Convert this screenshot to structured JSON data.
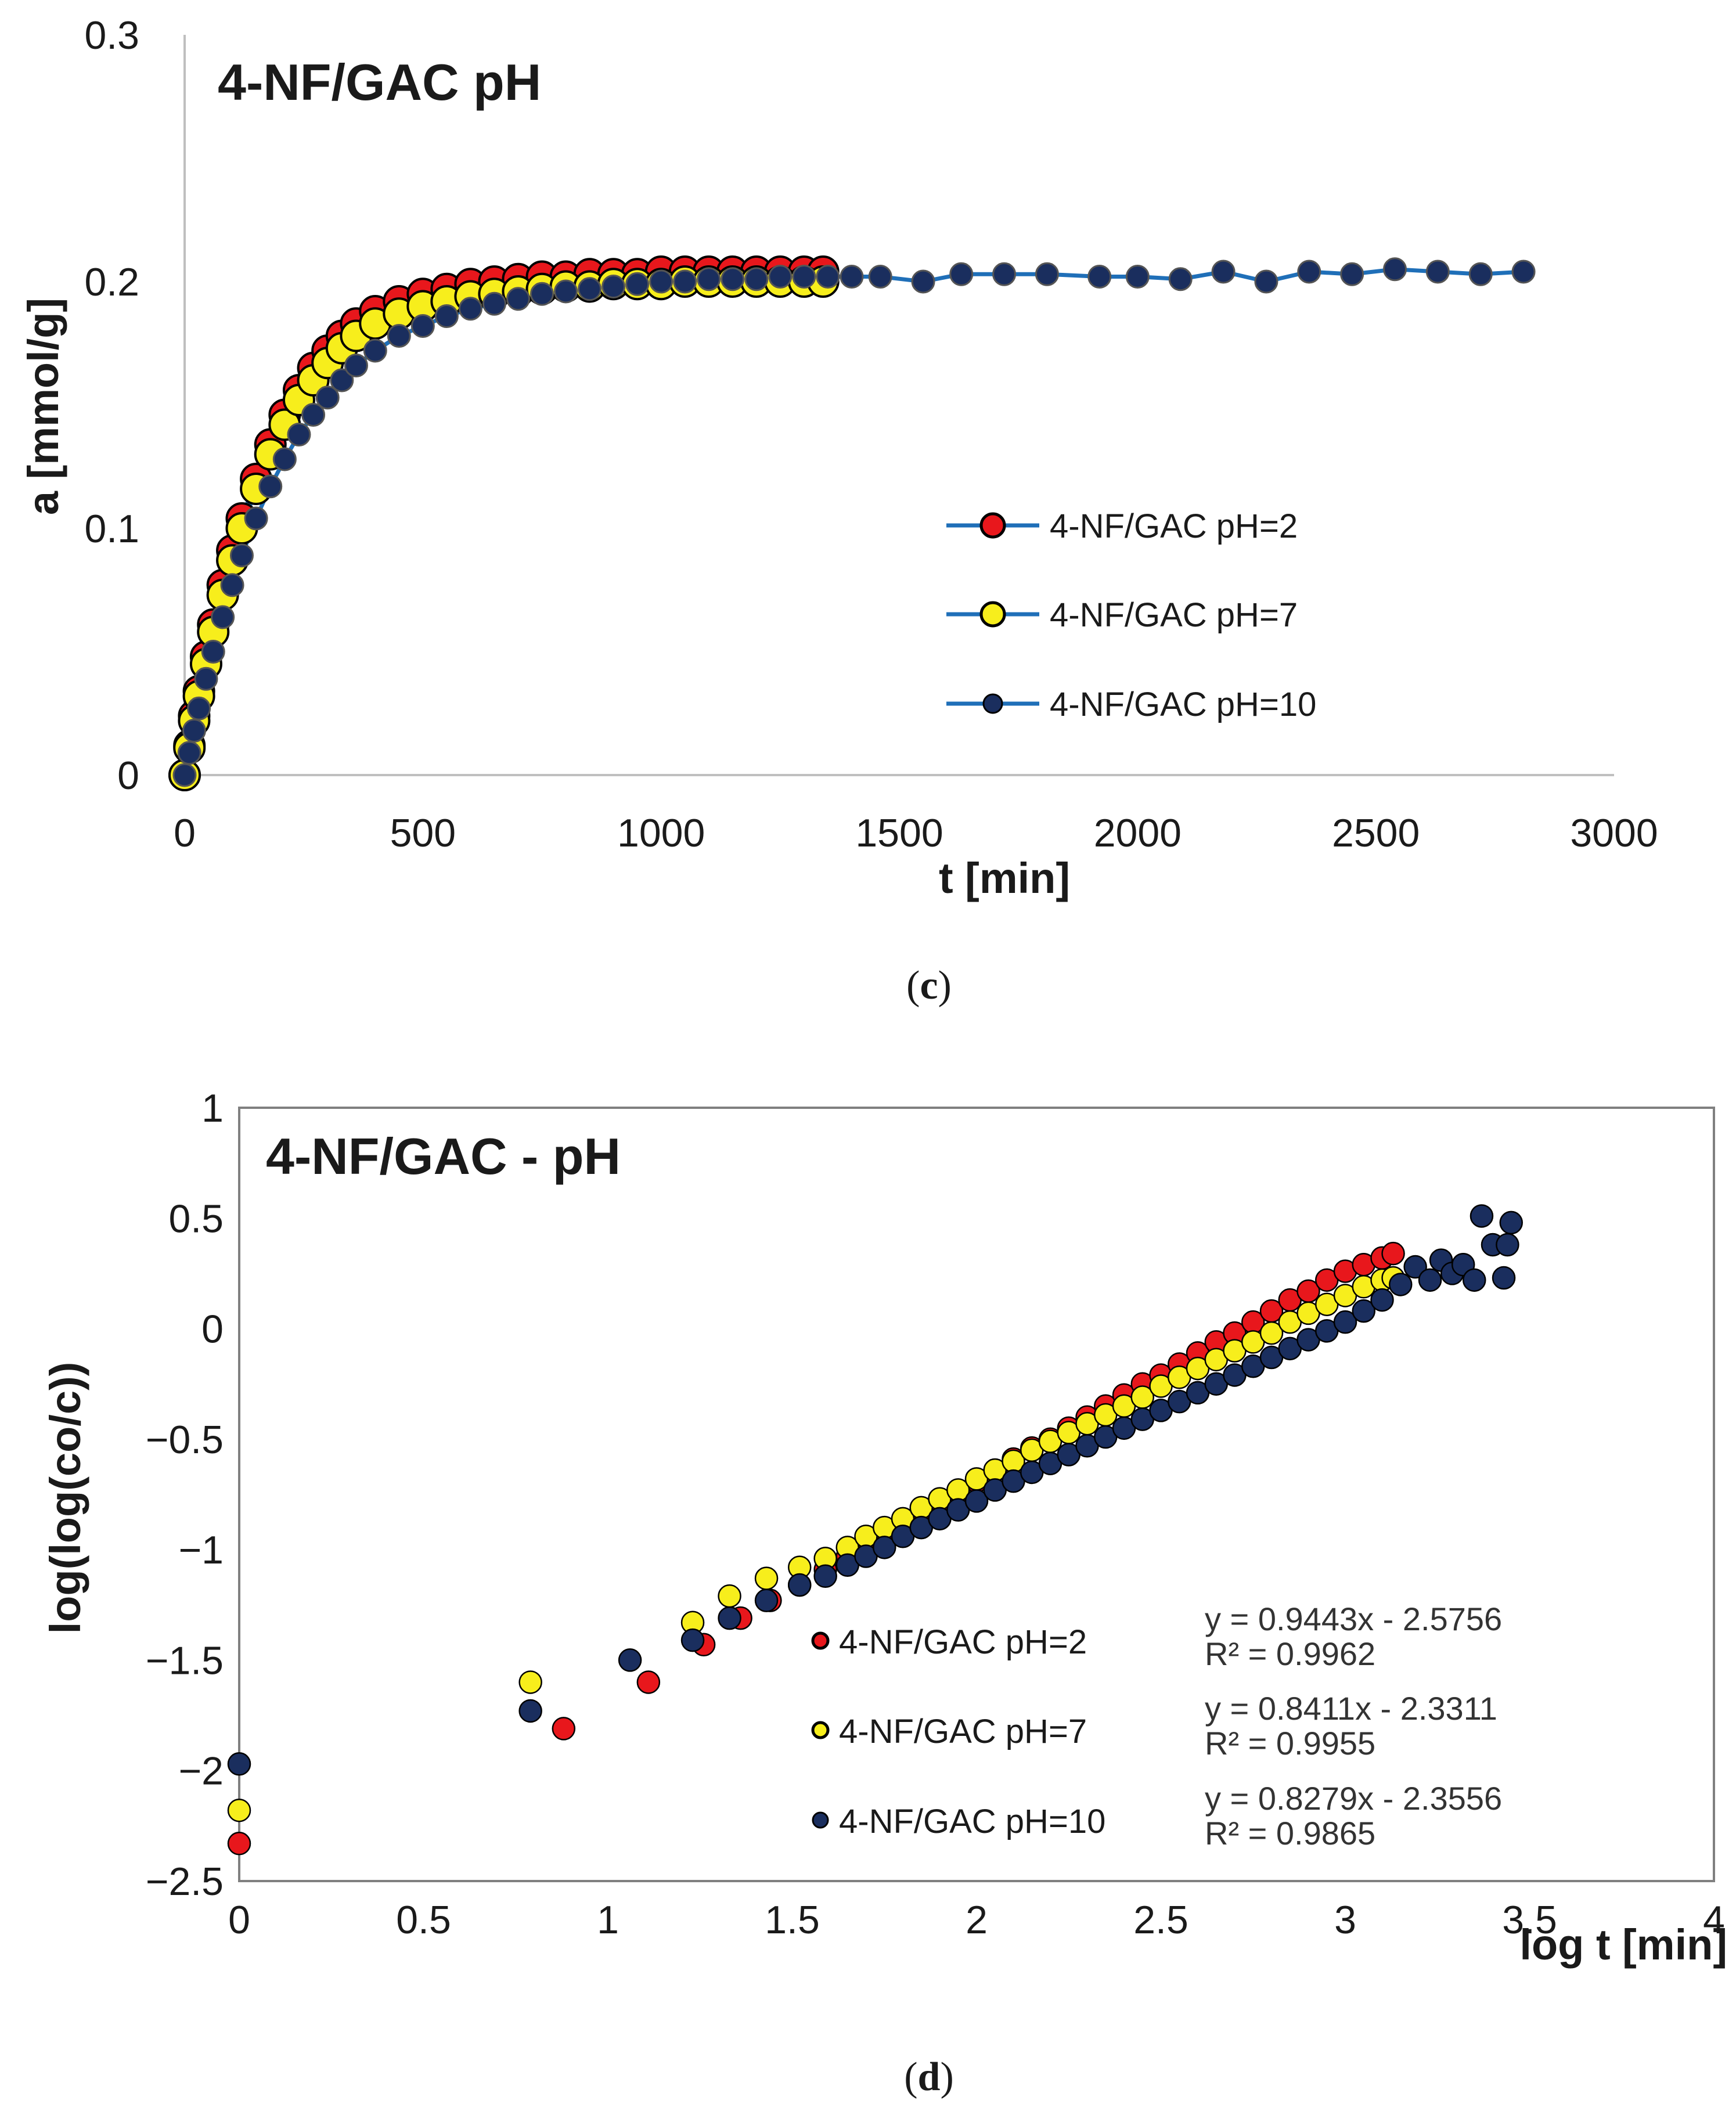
{
  "colors": {
    "ph2": "#e8171c",
    "ph7": "#f7ee1c",
    "ph10": "#1a2e5e",
    "line": "#1f6fb8",
    "axis": "#bfbfbf",
    "border": "#808080"
  },
  "chart_data": [
    {
      "type": "line",
      "title": "4-NF/GAC pH",
      "xlabel": "t [min]",
      "ylabel": "a [mmol/g]",
      "xlim": [
        0,
        3000
      ],
      "ylim": [
        0,
        0.3
      ],
      "xticks": [
        0,
        500,
        1000,
        1500,
        2000,
        2500,
        3000
      ],
      "yticks": [
        0,
        0.1,
        0.2,
        0.3
      ],
      "xtick_labels": [
        "0",
        "500",
        "1000",
        "1500",
        "2000",
        "2500",
        "3000"
      ],
      "ytick_labels": [
        "0",
        "0.1",
        "0.2",
        "0.3"
      ],
      "legend_position": "right",
      "caption": "c",
      "series": [
        {
          "name": "4-NF/GAC pH=2",
          "x": [
            0,
            10,
            20,
            30,
            45,
            60,
            80,
            100,
            120,
            150,
            180,
            210,
            240,
            270,
            300,
            330,
            360,
            400,
            450,
            500,
            550,
            600,
            650,
            700,
            750,
            800,
            850,
            900,
            950,
            1000,
            1050,
            1100,
            1150,
            1200,
            1250,
            1300,
            1340
          ],
          "y": [
            0,
            0.012,
            0.024,
            0.034,
            0.048,
            0.061,
            0.077,
            0.091,
            0.104,
            0.12,
            0.134,
            0.146,
            0.156,
            0.165,
            0.172,
            0.178,
            0.183,
            0.188,
            0.192,
            0.195,
            0.197,
            0.199,
            0.2,
            0.201,
            0.202,
            0.202,
            0.203,
            0.203,
            0.203,
            0.204,
            0.204,
            0.204,
            0.204,
            0.204,
            0.204,
            0.204,
            0.204
          ]
        },
        {
          "name": "4-NF/GAC pH=7",
          "x": [
            0,
            10,
            20,
            30,
            45,
            60,
            80,
            100,
            120,
            150,
            180,
            210,
            240,
            270,
            300,
            330,
            360,
            400,
            450,
            500,
            550,
            600,
            650,
            700,
            750,
            800,
            850,
            900,
            950,
            1000,
            1050,
            1100,
            1150,
            1200,
            1250,
            1300,
            1340
          ],
          "y": [
            0,
            0.011,
            0.022,
            0.032,
            0.045,
            0.058,
            0.073,
            0.087,
            0.1,
            0.116,
            0.13,
            0.142,
            0.152,
            0.16,
            0.167,
            0.173,
            0.178,
            0.183,
            0.187,
            0.19,
            0.192,
            0.194,
            0.195,
            0.196,
            0.197,
            0.198,
            0.198,
            0.199,
            0.199,
            0.199,
            0.2,
            0.2,
            0.2,
            0.2,
            0.2,
            0.2,
            0.2
          ]
        },
        {
          "name": "4-NF/GAC pH=10",
          "x": [
            0,
            10,
            20,
            30,
            45,
            60,
            80,
            100,
            120,
            150,
            180,
            210,
            240,
            270,
            300,
            330,
            360,
            400,
            450,
            500,
            550,
            600,
            650,
            700,
            750,
            800,
            850,
            900,
            950,
            1000,
            1050,
            1100,
            1150,
            1200,
            1250,
            1300,
            1350,
            1400,
            1460,
            1550,
            1630,
            1720,
            1810,
            1920,
            2000,
            2090,
            2180,
            2270,
            2360,
            2450,
            2540,
            2630,
            2720,
            2810
          ],
          "y": [
            0,
            0.009,
            0.018,
            0.027,
            0.039,
            0.05,
            0.064,
            0.077,
            0.089,
            0.104,
            0.117,
            0.128,
            0.138,
            0.146,
            0.153,
            0.16,
            0.166,
            0.172,
            0.178,
            0.182,
            0.186,
            0.189,
            0.191,
            0.193,
            0.195,
            0.196,
            0.197,
            0.198,
            0.199,
            0.2,
            0.2,
            0.201,
            0.201,
            0.201,
            0.202,
            0.202,
            0.202,
            0.202,
            0.202,
            0.2,
            0.203,
            0.203,
            0.203,
            0.202,
            0.202,
            0.201,
            0.204,
            0.2,
            0.204,
            0.203,
            0.205,
            0.204,
            0.203,
            0.204
          ]
        }
      ]
    },
    {
      "type": "scatter",
      "title": "4-NF/GAC - pH",
      "xlabel": "log t [min]",
      "ylabel": "log(log(co/c))",
      "xlim": [
        0,
        4
      ],
      "ylim": [
        -2.5,
        1
      ],
      "xticks": [
        0,
        0.5,
        1,
        1.5,
        2,
        2.5,
        3,
        3.5,
        4
      ],
      "yticks": [
        -2.5,
        -2,
        -1.5,
        -1,
        -0.5,
        0,
        0.5,
        1
      ],
      "xtick_labels": [
        "0",
        "0.5",
        "1",
        "1.5",
        "2",
        "2.5",
        "3",
        "3.5",
        "4"
      ],
      "ytick_labels": [
        "−2.5",
        "−2",
        "−1.5",
        "−1",
        "−0.5",
        "0",
        "0.5",
        "1"
      ],
      "legend_position": "bottom-right",
      "caption": "d",
      "series": [
        {
          "name": "4-NF/GAC pH=2",
          "equation": "y = 0.9443x - 2.5756",
          "r2": "R² = 0.9962",
          "x": [
            0,
            0.88,
            1.11,
            1.26,
            1.36,
            1.44,
            1.52,
            1.59,
            1.65,
            1.7,
            1.75,
            1.8,
            1.85,
            1.9,
            1.95,
            2.0,
            2.05,
            2.1,
            2.15,
            2.2,
            2.25,
            2.3,
            2.35,
            2.4,
            2.45,
            2.5,
            2.55,
            2.6,
            2.65,
            2.7,
            2.75,
            2.8,
            2.85,
            2.9,
            2.95,
            3.0,
            3.05,
            3.1,
            3.13
          ],
          "y": [
            -2.33,
            -1.81,
            -1.6,
            -1.43,
            -1.31,
            -1.23,
            -1.16,
            -1.09,
            -1.03,
            -0.99,
            -0.94,
            -0.89,
            -0.84,
            -0.79,
            -0.74,
            -0.69,
            -0.64,
            -0.59,
            -0.54,
            -0.5,
            -0.45,
            -0.4,
            -0.35,
            -0.3,
            -0.25,
            -0.21,
            -0.16,
            -0.11,
            -0.06,
            -0.02,
            0.03,
            0.08,
            0.13,
            0.17,
            0.22,
            0.26,
            0.29,
            0.32,
            0.34
          ]
        },
        {
          "name": "4-NF/GAC pH=7",
          "equation": "y = 0.8411x - 2.3311",
          "r2": "R² = 0.9955",
          "x": [
            0,
            0.79,
            1.23,
            1.33,
            1.43,
            1.52,
            1.59,
            1.65,
            1.7,
            1.75,
            1.8,
            1.85,
            1.9,
            1.95,
            2.0,
            2.05,
            2.1,
            2.15,
            2.2,
            2.25,
            2.3,
            2.35,
            2.4,
            2.45,
            2.5,
            2.55,
            2.6,
            2.65,
            2.7,
            2.75,
            2.8,
            2.85,
            2.9,
            2.95,
            3.0,
            3.05,
            3.1,
            3.13
          ],
          "y": [
            -2.18,
            -1.6,
            -1.33,
            -1.21,
            -1.13,
            -1.08,
            -1.04,
            -0.99,
            -0.94,
            -0.9,
            -0.86,
            -0.81,
            -0.77,
            -0.73,
            -0.68,
            -0.64,
            -0.6,
            -0.55,
            -0.51,
            -0.47,
            -0.43,
            -0.39,
            -0.35,
            -0.31,
            -0.26,
            -0.22,
            -0.18,
            -0.14,
            -0.1,
            -0.06,
            -0.02,
            0.03,
            0.07,
            0.11,
            0.15,
            0.19,
            0.22,
            0.23
          ]
        },
        {
          "name": "4-NF/GAC pH=10",
          "equation": "y = 0.8279x - 2.3556",
          "r2": "R² = 0.9865",
          "x": [
            0,
            0.79,
            1.06,
            1.23,
            1.33,
            1.43,
            1.52,
            1.59,
            1.65,
            1.7,
            1.75,
            1.8,
            1.85,
            1.9,
            1.95,
            2.0,
            2.05,
            2.1,
            2.15,
            2.2,
            2.25,
            2.3,
            2.35,
            2.4,
            2.45,
            2.5,
            2.55,
            2.6,
            2.65,
            2.7,
            2.75,
            2.8,
            2.85,
            2.9,
            2.95,
            3.0,
            3.05,
            3.1,
            3.15,
            3.19,
            3.23,
            3.26,
            3.29,
            3.32,
            3.35,
            3.37,
            3.4,
            3.43,
            3.45,
            3.44
          ],
          "y": [
            -1.97,
            -1.73,
            -1.5,
            -1.41,
            -1.31,
            -1.23,
            -1.16,
            -1.12,
            -1.07,
            -1.03,
            -0.99,
            -0.94,
            -0.9,
            -0.86,
            -0.82,
            -0.78,
            -0.73,
            -0.69,
            -0.65,
            -0.61,
            -0.57,
            -0.53,
            -0.49,
            -0.45,
            -0.41,
            -0.37,
            -0.33,
            -0.29,
            -0.25,
            -0.21,
            -0.17,
            -0.13,
            -0.09,
            -0.05,
            -0.01,
            0.03,
            0.08,
            0.13,
            0.2,
            0.28,
            0.22,
            0.31,
            0.25,
            0.29,
            0.22,
            0.51,
            0.38,
            0.23,
            0.48,
            0.38
          ]
        }
      ]
    }
  ]
}
